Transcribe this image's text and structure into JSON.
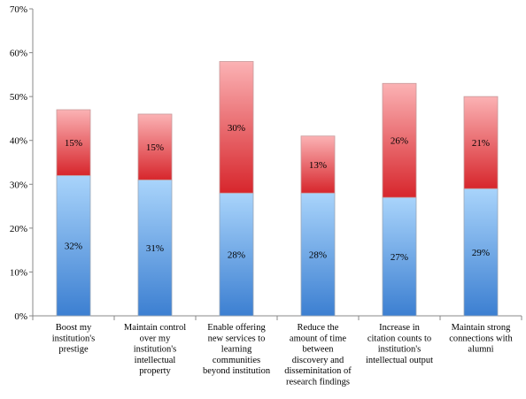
{
  "chart_data": {
    "type": "bar",
    "stacked": true,
    "categories": [
      [
        "Boost my",
        "institution's",
        "prestige"
      ],
      [
        "Maintain control",
        "over my",
        "institution's",
        "intellectual",
        "property"
      ],
      [
        "Enable offering",
        "new services to",
        "learning",
        "communities",
        "beyond institution"
      ],
      [
        "Reduce the",
        "amount of time",
        "between",
        "discovery and",
        "disseminitation of",
        "research findings"
      ],
      [
        "Increase in",
        "citation counts to",
        "institution's",
        "intellectual output"
      ],
      [
        "Maintain strong",
        "connections with",
        "alumni"
      ]
    ],
    "series": [
      {
        "values": [
          32,
          31,
          28,
          28,
          27,
          29
        ],
        "labels": [
          "32%",
          "31%",
          "28%",
          "28%",
          "27%",
          "29%"
        ],
        "color_top": "#a9d4fb",
        "color_bottom": "#3c7fd1"
      },
      {
        "values": [
          15,
          15,
          30,
          13,
          26,
          21
        ],
        "labels": [
          "15%",
          "15%",
          "30%",
          "13%",
          "26%",
          "21%"
        ],
        "color_top": "#fbb2b4",
        "color_bottom": "#d7262c"
      }
    ],
    "y_ticks": [
      "0%",
      "10%",
      "20%",
      "30%",
      "40%",
      "50%",
      "60%",
      "70%"
    ],
    "ylim": [
      0,
      70
    ],
    "grid": false,
    "legend": "none",
    "title": "",
    "xlabel": "",
    "ylabel": ""
  }
}
